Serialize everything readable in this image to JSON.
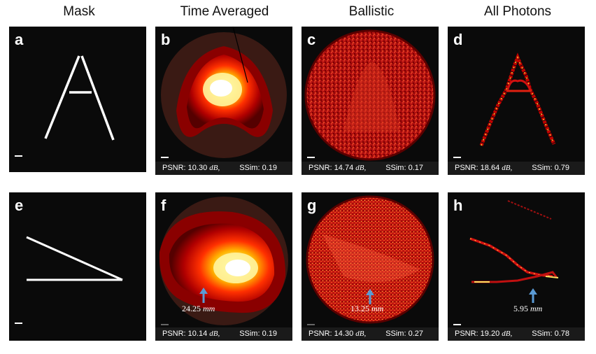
{
  "columns": [
    "Mask",
    "Time Averaged",
    "Ballistic",
    "All Photons"
  ],
  "panels": {
    "a": {
      "label": "a"
    },
    "b": {
      "label": "b",
      "psnr": "PSNR: 10.30",
      "unit": "dB,",
      "ssim": "SSim: 0.19"
    },
    "c": {
      "label": "c",
      "psnr": "PSNR: 14.74",
      "unit": "dB,",
      "ssim": "SSim: 0.17"
    },
    "d": {
      "label": "d",
      "psnr": "PSNR: 18.64",
      "unit": "dB,",
      "ssim": "SSim: 0.79"
    },
    "e": {
      "label": "e"
    },
    "f": {
      "label": "f",
      "psnr": "PSNR: 10.14",
      "unit": "dB,",
      "ssim": "SSim: 0.19",
      "dist": "24.25",
      "dist_unit": "mm"
    },
    "g": {
      "label": "g",
      "psnr": "PSNR: 14.30",
      "unit": "dB,",
      "ssim": "SSim: 0.27",
      "dist": "13.25",
      "dist_unit": "mm"
    },
    "h": {
      "label": "h",
      "psnr": "PSNR: 19.20",
      "unit": "dB,",
      "ssim": "SSim: 0.78",
      "dist": "5.95",
      "dist_unit": "mm"
    }
  },
  "colors": {
    "arrow": "#5b9bd5",
    "hot_low": "#8b0000",
    "hot_high": "#ffffff"
  }
}
